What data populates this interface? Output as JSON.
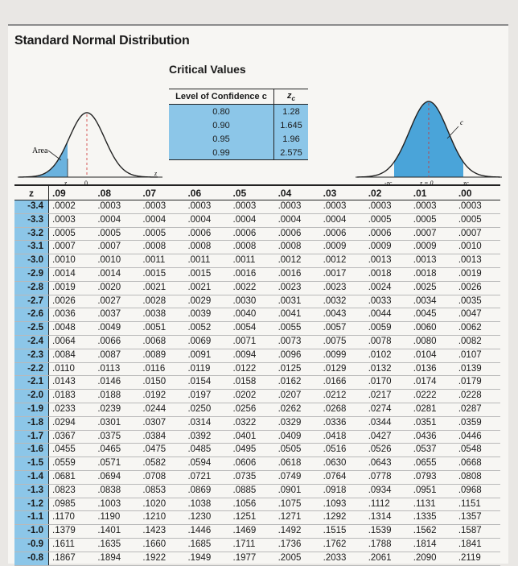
{
  "page": {
    "title": "Standard Normal Distribution"
  },
  "critical_values": {
    "title": "Critical Values",
    "header_c": "Level of Confidence c",
    "header_z": "zc",
    "rows": [
      {
        "c": "0.80",
        "z": "1.28"
      },
      {
        "c": "0.90",
        "z": "1.645"
      },
      {
        "c": "0.95",
        "z": "1.96"
      },
      {
        "c": "0.99",
        "z": "2.575"
      }
    ]
  },
  "left_graph": {
    "area_label": "Area",
    "z_label": "z",
    "zero_label": "0",
    "axis_label": "z",
    "fill_color": "#6ab2de"
  },
  "right_graph": {
    "c_label": "c",
    "neg_zc_label": "-zc",
    "zero_label": "z = 0",
    "pos_zc_label": "zc",
    "fill_color": "#4aa4d9"
  },
  "ztable": {
    "z_header": "z",
    "columns": [
      ".09",
      ".08",
      ".07",
      ".06",
      ".05",
      ".04",
      ".03",
      ".02",
      ".01",
      ".00"
    ],
    "rows": [
      {
        "z": "-3.4",
        "v": [
          ".0002",
          ".0003",
          ".0003",
          ".0003",
          ".0003",
          ".0003",
          ".0003",
          ".0003",
          ".0003",
          ".0003"
        ]
      },
      {
        "z": "-3.3",
        "v": [
          ".0003",
          ".0004",
          ".0004",
          ".0004",
          ".0004",
          ".0004",
          ".0004",
          ".0005",
          ".0005",
          ".0005"
        ]
      },
      {
        "z": "-3.2",
        "v": [
          ".0005",
          ".0005",
          ".0005",
          ".0006",
          ".0006",
          ".0006",
          ".0006",
          ".0006",
          ".0007",
          ".0007"
        ]
      },
      {
        "z": "-3.1",
        "v": [
          ".0007",
          ".0007",
          ".0008",
          ".0008",
          ".0008",
          ".0008",
          ".0009",
          ".0009",
          ".0009",
          ".0010"
        ]
      },
      {
        "z": "-3.0",
        "v": [
          ".0010",
          ".0010",
          ".0011",
          ".0011",
          ".0011",
          ".0012",
          ".0012",
          ".0013",
          ".0013",
          ".0013"
        ]
      },
      {
        "z": "-2.9",
        "v": [
          ".0014",
          ".0014",
          ".0015",
          ".0015",
          ".0016",
          ".0016",
          ".0017",
          ".0018",
          ".0018",
          ".0019"
        ]
      },
      {
        "z": "-2.8",
        "v": [
          ".0019",
          ".0020",
          ".0021",
          ".0021",
          ".0022",
          ".0023",
          ".0023",
          ".0024",
          ".0025",
          ".0026"
        ]
      },
      {
        "z": "-2.7",
        "v": [
          ".0026",
          ".0027",
          ".0028",
          ".0029",
          ".0030",
          ".0031",
          ".0032",
          ".0033",
          ".0034",
          ".0035"
        ]
      },
      {
        "z": "-2.6",
        "v": [
          ".0036",
          ".0037",
          ".0038",
          ".0039",
          ".0040",
          ".0041",
          ".0043",
          ".0044",
          ".0045",
          ".0047"
        ]
      },
      {
        "z": "-2.5",
        "v": [
          ".0048",
          ".0049",
          ".0051",
          ".0052",
          ".0054",
          ".0055",
          ".0057",
          ".0059",
          ".0060",
          ".0062"
        ]
      },
      {
        "z": "-2.4",
        "v": [
          ".0064",
          ".0066",
          ".0068",
          ".0069",
          ".0071",
          ".0073",
          ".0075",
          ".0078",
          ".0080",
          ".0082"
        ]
      },
      {
        "z": "-2.3",
        "v": [
          ".0084",
          ".0087",
          ".0089",
          ".0091",
          ".0094",
          ".0096",
          ".0099",
          ".0102",
          ".0104",
          ".0107"
        ]
      },
      {
        "z": "-2.2",
        "v": [
          ".0110",
          ".0113",
          ".0116",
          ".0119",
          ".0122",
          ".0125",
          ".0129",
          ".0132",
          ".0136",
          ".0139"
        ]
      },
      {
        "z": "-2.1",
        "v": [
          ".0143",
          ".0146",
          ".0150",
          ".0154",
          ".0158",
          ".0162",
          ".0166",
          ".0170",
          ".0174",
          ".0179"
        ]
      },
      {
        "z": "-2.0",
        "v": [
          ".0183",
          ".0188",
          ".0192",
          ".0197",
          ".0202",
          ".0207",
          ".0212",
          ".0217",
          ".0222",
          ".0228"
        ]
      },
      {
        "z": "-1.9",
        "v": [
          ".0233",
          ".0239",
          ".0244",
          ".0250",
          ".0256",
          ".0262",
          ".0268",
          ".0274",
          ".0281",
          ".0287"
        ]
      },
      {
        "z": "-1.8",
        "v": [
          ".0294",
          ".0301",
          ".0307",
          ".0314",
          ".0322",
          ".0329",
          ".0336",
          ".0344",
          ".0351",
          ".0359"
        ]
      },
      {
        "z": "-1.7",
        "v": [
          ".0367",
          ".0375",
          ".0384",
          ".0392",
          ".0401",
          ".0409",
          ".0418",
          ".0427",
          ".0436",
          ".0446"
        ]
      },
      {
        "z": "-1.6",
        "v": [
          ".0455",
          ".0465",
          ".0475",
          ".0485",
          ".0495",
          ".0505",
          ".0516",
          ".0526",
          ".0537",
          ".0548"
        ]
      },
      {
        "z": "-1.5",
        "v": [
          ".0559",
          ".0571",
          ".0582",
          ".0594",
          ".0606",
          ".0618",
          ".0630",
          ".0643",
          ".0655",
          ".0668"
        ]
      },
      {
        "z": "-1.4",
        "v": [
          ".0681",
          ".0694",
          ".0708",
          ".0721",
          ".0735",
          ".0749",
          ".0764",
          ".0778",
          ".0793",
          ".0808"
        ]
      },
      {
        "z": "-1.3",
        "v": [
          ".0823",
          ".0838",
          ".0853",
          ".0869",
          ".0885",
          ".0901",
          ".0918",
          ".0934",
          ".0951",
          ".0968"
        ]
      },
      {
        "z": "-1.2",
        "v": [
          ".0985",
          ".1003",
          ".1020",
          ".1038",
          ".1056",
          ".1075",
          ".1093",
          ".1112",
          ".1131",
          ".1151"
        ]
      },
      {
        "z": "-1.1",
        "v": [
          ".1170",
          ".1190",
          ".1210",
          ".1230",
          ".1251",
          ".1271",
          ".1292",
          ".1314",
          ".1335",
          ".1357"
        ]
      },
      {
        "z": "-1.0",
        "v": [
          ".1379",
          ".1401",
          ".1423",
          ".1446",
          ".1469",
          ".1492",
          ".1515",
          ".1539",
          ".1562",
          ".1587"
        ]
      },
      {
        "z": "-0.9",
        "v": [
          ".1611",
          ".1635",
          ".1660",
          ".1685",
          ".1711",
          ".1736",
          ".1762",
          ".1788",
          ".1814",
          ".1841"
        ]
      },
      {
        "z": "-0.8",
        "v": [
          ".1867",
          ".1894",
          ".1922",
          ".1949",
          ".1977",
          ".2005",
          ".2033",
          ".2061",
          ".2090",
          ".2119"
        ]
      }
    ]
  }
}
